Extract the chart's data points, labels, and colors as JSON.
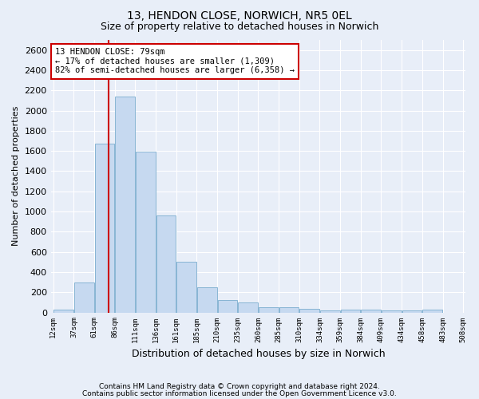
{
  "title1": "13, HENDON CLOSE, NORWICH, NR5 0EL",
  "title2": "Size of property relative to detached houses in Norwich",
  "xlabel": "Distribution of detached houses by size in Norwich",
  "ylabel": "Number of detached properties",
  "bin_labels": [
    "12sqm",
    "37sqm",
    "61sqm",
    "86sqm",
    "111sqm",
    "136sqm",
    "161sqm",
    "185sqm",
    "210sqm",
    "235sqm",
    "260sqm",
    "285sqm",
    "310sqm",
    "334sqm",
    "359sqm",
    "384sqm",
    "409sqm",
    "434sqm",
    "458sqm",
    "483sqm",
    "508sqm"
  ],
  "bar_values": [
    25,
    300,
    1670,
    2140,
    1590,
    960,
    500,
    250,
    120,
    100,
    50,
    50,
    35,
    20,
    25,
    25,
    20,
    20,
    25,
    0
  ],
  "bar_color": "#c6d9f0",
  "bar_edge_color": "#7aadce",
  "vline_x": 79,
  "vline_color": "#cc0000",
  "annotation_text": "13 HENDON CLOSE: 79sqm\n← 17% of detached houses are smaller (1,309)\n82% of semi-detached houses are larger (6,358) →",
  "annotation_box_color": "#ffffff",
  "annotation_box_edge_color": "#cc0000",
  "ylim": [
    0,
    2700
  ],
  "yticks": [
    0,
    200,
    400,
    600,
    800,
    1000,
    1200,
    1400,
    1600,
    1800,
    2000,
    2200,
    2400,
    2600
  ],
  "footer1": "Contains HM Land Registry data © Crown copyright and database right 2024.",
  "footer2": "Contains public sector information licensed under the Open Government Licence v3.0.",
  "background_color": "#e8eef8",
  "grid_color": "#ffffff",
  "property_sqm": 79,
  "title1_fontsize": 10,
  "title2_fontsize": 9,
  "ylabel_fontsize": 8,
  "xlabel_fontsize": 9
}
